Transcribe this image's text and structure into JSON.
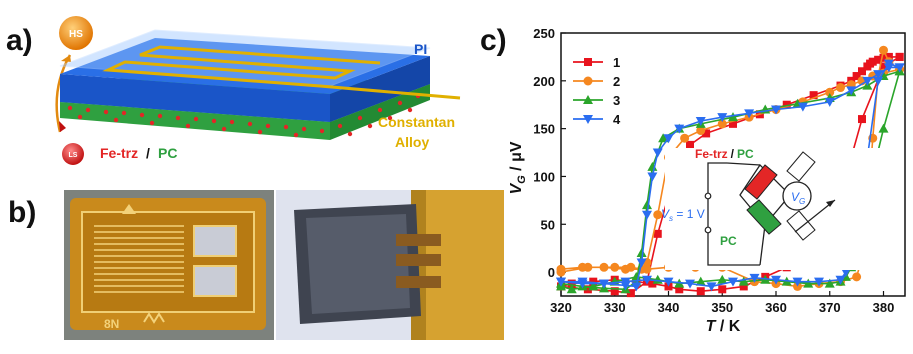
{
  "panels": {
    "a": "a)",
    "b": "b)",
    "c": "c)"
  },
  "panel_a": {
    "hs_label": "HS",
    "ls_label": "LS",
    "pi_label": "PI",
    "constantan_label_1": "Constantan",
    "constantan_label_2": "Alloy",
    "fe_trz": "Fe-trz",
    "slash": "/",
    "pc": "PC",
    "colors": {
      "pi_blue": "#1f5fd6",
      "pc_green": "#2fa040",
      "alloy": "#e0b000",
      "fe_red": "#e32626"
    }
  },
  "panel_b": {
    "gauge_text": "8N"
  },
  "chart_data": {
    "type": "line",
    "xlabel_var": "T",
    "xlabel_unit": " / K",
    "ylabel_var": "V",
    "ylabel_sub": "G",
    "ylabel_unit": " / μV",
    "xlim": [
      320,
      384
    ],
    "ylim": [
      -25,
      250
    ],
    "xticks": [
      320,
      330,
      340,
      350,
      360,
      370,
      380
    ],
    "yticks": [
      0,
      50,
      100,
      150,
      200,
      250
    ],
    "legend_position": "top-left",
    "series": [
      {
        "name": "1",
        "color": "#e8131d",
        "marker": "square",
        "x": [
          320,
          325,
          330,
          333,
          336,
          338,
          341,
          344,
          347,
          352,
          357,
          362,
          367,
          372,
          374,
          375,
          376,
          377,
          377.5,
          378,
          379,
          380,
          381,
          383,
          383,
          380,
          376,
          372,
          370,
          366,
          362,
          358,
          354,
          350,
          346,
          342,
          340,
          337,
          334,
          330,
          326,
          322,
          320
        ],
        "y": [
          -15,
          -18,
          -20,
          -22,
          -10,
          40,
          100,
          133,
          145,
          155,
          165,
          175,
          185,
          195,
          200,
          205,
          210,
          215,
          218,
          220,
          222,
          224,
          225,
          225,
          225,
          215,
          160,
          80,
          50,
          30,
          5,
          -5,
          -15,
          -18,
          -20,
          -18,
          -15,
          -12,
          -10,
          -8,
          -10,
          -12,
          -15
        ]
      },
      {
        "name": "2",
        "color": "#f5871f",
        "marker": "circle",
        "x": [
          320,
          325,
          330,
          333,
          335,
          336,
          338,
          340,
          343,
          346,
          350,
          355,
          360,
          365,
          370,
          372,
          374,
          376,
          378,
          380,
          383,
          383,
          381,
          380,
          379,
          378,
          377,
          376,
          375,
          372,
          368,
          364,
          360,
          356,
          350,
          345,
          340,
          336,
          332,
          328,
          324,
          320
        ],
        "y": [
          0,
          5,
          5,
          5,
          3,
          10,
          60,
          120,
          140,
          148,
          155,
          162,
          170,
          178,
          188,
          193,
          196,
          200,
          205,
          208,
          212,
          212,
          220,
          232,
          205,
          140,
          60,
          15,
          -5,
          -10,
          -12,
          -15,
          -12,
          -10,
          5,
          5,
          5,
          3,
          3,
          5,
          5,
          3
        ]
      },
      {
        "name": "3",
        "color": "#2ba52b",
        "marker": "triangle-up",
        "x": [
          320,
          324,
          328,
          332,
          334,
          335,
          336,
          337,
          339,
          342,
          346,
          352,
          358,
          364,
          370,
          374,
          377,
          380,
          383,
          383,
          380,
          377,
          375,
          374,
          373,
          372,
          370,
          366,
          362,
          358,
          354,
          350,
          346,
          342,
          338,
          334,
          330,
          326,
          322,
          320
        ],
        "y": [
          -12,
          -15,
          -17,
          -18,
          -10,
          20,
          70,
          110,
          140,
          150,
          155,
          162,
          170,
          176,
          182,
          188,
          195,
          205,
          210,
          210,
          150,
          80,
          30,
          5,
          -5,
          -10,
          -12,
          -12,
          -10,
          -8,
          -10,
          -8,
          -10,
          -12,
          -8,
          -5,
          -10,
          -15,
          -18,
          -15
        ]
      },
      {
        "name": "4",
        "color": "#2a6df0",
        "marker": "triangle-down",
        "x": [
          320,
          324,
          328,
          332,
          334,
          335,
          336,
          337,
          338,
          340,
          342,
          346,
          350,
          355,
          360,
          365,
          370,
          374,
          377,
          379,
          381,
          383,
          383,
          381,
          379,
          377,
          375,
          374,
          373,
          372,
          368,
          364,
          360,
          356,
          352,
          348,
          344,
          340,
          336,
          332,
          328,
          324,
          320
        ],
        "y": [
          -10,
          -10,
          -12,
          -14,
          -15,
          10,
          60,
          100,
          125,
          140,
          150,
          158,
          162,
          166,
          170,
          173,
          178,
          190,
          200,
          207,
          214,
          214,
          214,
          218,
          200,
          120,
          60,
          20,
          0,
          -8,
          -10,
          -10,
          -8,
          -6,
          -10,
          -15,
          -12,
          -10,
          -8,
          -10,
          -12,
          -12,
          -10
        ]
      }
    ]
  },
  "inset": {
    "fe_trz": "Fe-trz",
    "slash": "/",
    "pc_top": "PC",
    "vs": "V",
    "vs_sub": "s",
    "vs_value": " = 1 V",
    "vg": "V",
    "vg_sub": "G",
    "pc_bottom": "PC"
  }
}
